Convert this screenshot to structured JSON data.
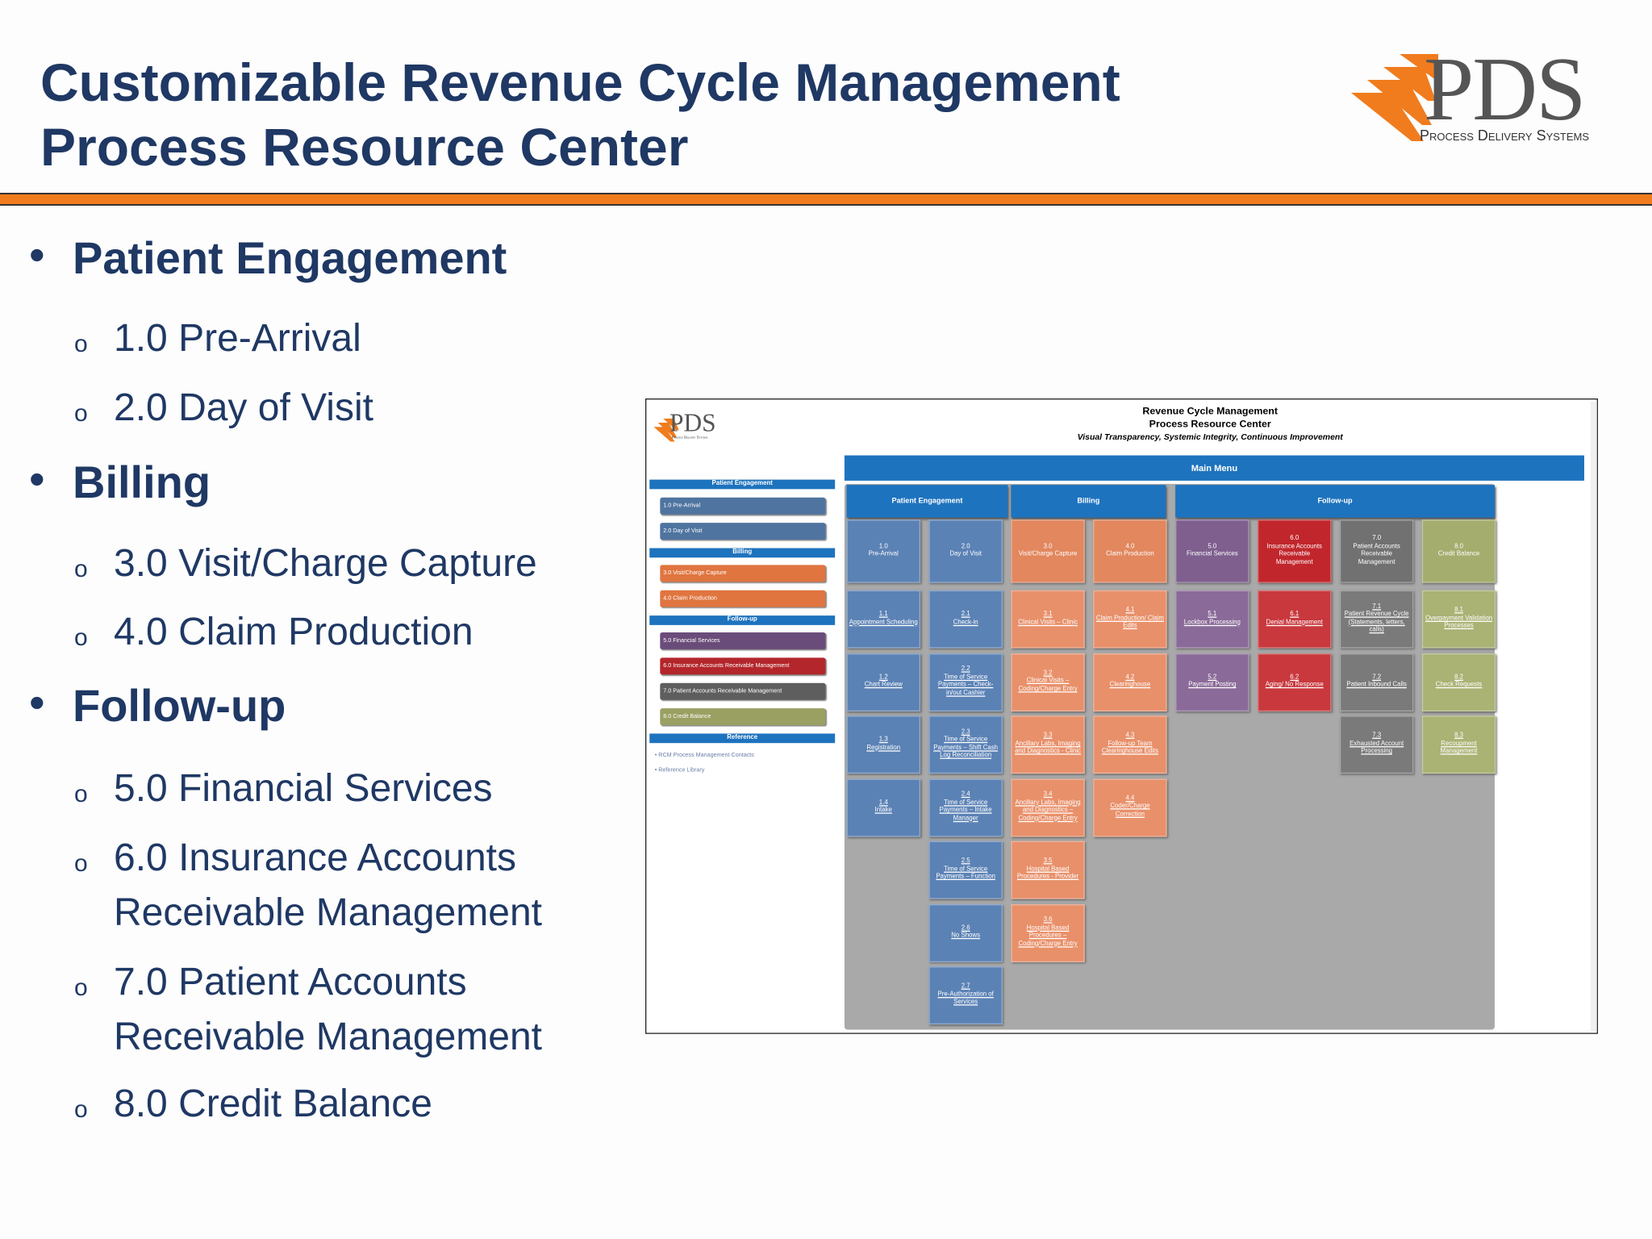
{
  "header": {
    "title_lines": [
      "Customizable Revenue Cycle Management",
      "Process Resource Center"
    ],
    "logo": {
      "mark": "PDS",
      "tagline": "Process Delivery Systems"
    }
  },
  "outline": [
    {
      "heading": "Patient Engagement",
      "items": [
        "1.0 Pre-Arrival",
        "2.0 Day of Visit"
      ]
    },
    {
      "heading": "Billing",
      "items": [
        "3.0 Visit/Charge Capture",
        "4.0 Claim Production"
      ]
    },
    {
      "heading": "Follow-up",
      "items": [
        "5.0 Financial Services",
        "6.0 Insurance Accounts Receivable Management",
        "7.0 Patient Accounts Receivable Management",
        "8.0 Credit Balance"
      ]
    }
  ],
  "screenshot": {
    "logo": {
      "mark": "PDS",
      "tagline": "Process Delivery Systems"
    },
    "title_lines": [
      "Revenue Cycle Management",
      "Process Resource Center"
    ],
    "tagline": "Visual Transparency, Systemic Integrity, Continuous Improvement",
    "sidebar": [
      {
        "heading": "Patient Engagement",
        "items": [
          "1.0 Pre-Arrival",
          "2.0 Day of Visit"
        ]
      },
      {
        "heading": "Billing",
        "items": [
          "3.0 Visit/Charge Capture",
          "4.0 Claim Production"
        ]
      },
      {
        "heading": "Follow-up",
        "items": [
          "5.0 Financial Services",
          "6.0 Insurance Accounts Receivable Management",
          "7.0 Patient Accounts Receivable Management",
          "8.0 Credit Balance"
        ]
      }
    ],
    "reference": {
      "heading": "Reference",
      "links": [
        "RCM Process Management Contacts",
        "Reference Library"
      ]
    },
    "main_menu": "Main Menu",
    "groups": [
      "Patient Engagement",
      "Billing",
      "Follow-up"
    ],
    "columns": [
      {
        "header": {
          "number": "1.0",
          "label": "Pre-Arrival"
        },
        "items": [
          {
            "number": "1.1",
            "label": "Appointment Scheduling"
          },
          {
            "number": "1.2",
            "label": "Chart Review"
          },
          {
            "number": "1.3",
            "label": "Registration"
          },
          {
            "number": "1.4",
            "label": "Intake"
          }
        ]
      },
      {
        "header": {
          "number": "2.0",
          "label": "Day of Visit"
        },
        "items": [
          {
            "number": "2.1",
            "label": "Check-in"
          },
          {
            "number": "2.2",
            "label": "Time of Service Payments – Check-in/out Cashier"
          },
          {
            "number": "2.3",
            "label": "Time of Service Payments – Shift Cash Log Reconciliation"
          },
          {
            "number": "2.4",
            "label": "Time of Service Payments – Intake Manager"
          },
          {
            "number": "2.5",
            "label": "Time of Service Payments – Function"
          },
          {
            "number": "2.6",
            "label": "No Shows"
          },
          {
            "number": "2.7",
            "label": "Pre-Authorization of Services"
          }
        ]
      },
      {
        "header": {
          "number": "3.0",
          "label": "Visit/Charge Capture"
        },
        "items": [
          {
            "number": "3.1",
            "label": "Clinical Visits – Clinic"
          },
          {
            "number": "3.2",
            "label": "Clinical Visits – Coding/Charge Entry"
          },
          {
            "number": "3.3",
            "label": "Ancillary Labs, Imaging and Diagnostics - Clinic"
          },
          {
            "number": "3.4",
            "label": "Ancillary Labs, Imaging and Diagnostics – Coding/Charge Entry"
          },
          {
            "number": "3.5",
            "label": "Hospital Based Procedures - Provider"
          },
          {
            "number": "3.6",
            "label": "Hospital Based Procedures – Coding/Charge Entry"
          }
        ]
      },
      {
        "header": {
          "number": "4.0",
          "label": "Claim Production"
        },
        "items": [
          {
            "number": "4.1",
            "label": "Claim Production/ Claim Edits"
          },
          {
            "number": "4.2",
            "label": "Clearinghouse"
          },
          {
            "number": "4.3",
            "label": "Follow-up Team Clearinghouse Edits"
          },
          {
            "number": "4.4",
            "label": "Coder/Charge Correction"
          }
        ]
      },
      {
        "header": {
          "number": "5.0",
          "label": "Financial Services"
        },
        "items": [
          {
            "number": "5.1",
            "label": "Lockbox Processing"
          },
          {
            "number": "5.2",
            "label": "Payment Posting"
          }
        ]
      },
      {
        "header": {
          "number": "6.0",
          "label": "Insurance Accounts Receivable Management"
        },
        "items": [
          {
            "number": "6.1",
            "label": "Denial Management"
          },
          {
            "number": "6.2",
            "label": "Aging/ No Response"
          }
        ]
      },
      {
        "header": {
          "number": "7.0",
          "label": "Patient Accounts Receivable Management"
        },
        "items": [
          {
            "number": "7.1",
            "label": "Patient Revenue Cycle (Statements, letters, calls)"
          },
          {
            "number": "7.2",
            "label": "Patient Inbound Calls"
          },
          {
            "number": "7.3",
            "label": "Exhausted Account Processing"
          }
        ]
      },
      {
        "header": {
          "number": "8.0",
          "label": "Credit Balance"
        },
        "items": [
          {
            "number": "8.1",
            "label": "Overpayment Validation Processes"
          },
          {
            "number": "8.2",
            "label": "Check Requests"
          },
          {
            "number": "8.3",
            "label": "Recoupment Management"
          }
        ]
      }
    ]
  }
}
